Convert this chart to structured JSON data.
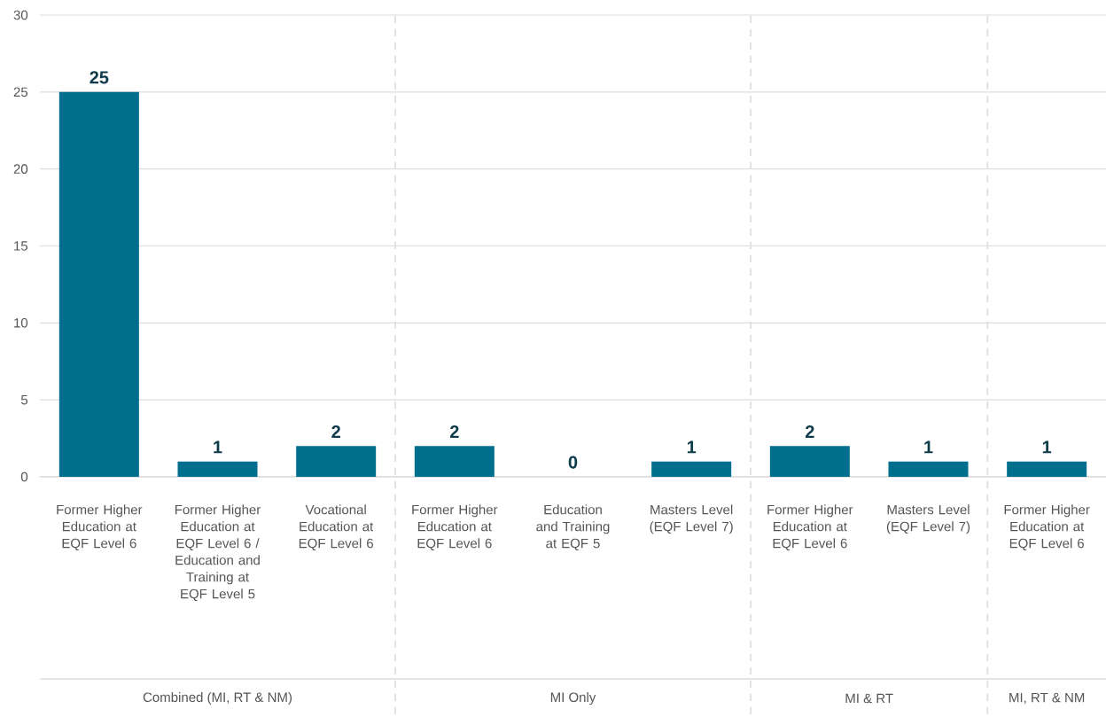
{
  "chart_data": {
    "type": "bar",
    "categories": [
      "Former Higher Education at EQF Level 6",
      "Former Higher Education at EQF Level 6 / Education and Training at EQF Level 5",
      "Vocational Education at EQF Level 6",
      "Former Higher Education at EQF Level 6",
      "Education and Training at EQF 5",
      "Masters Level (EQF Level 7)",
      "Former Higher Education at EQF Level 6",
      "Masters Level (EQF Level 7)",
      "Former Higher Education at EQF Level 6"
    ],
    "values": [
      25,
      1,
      2,
      2,
      0,
      1,
      2,
      1,
      1
    ],
    "color": "#006f8e",
    "ylim": [
      0,
      30
    ],
    "yticks": [
      0,
      5,
      10,
      15,
      20,
      25,
      30
    ],
    "grid": "y",
    "data_labels": true,
    "annotations": [
      "Combined (MI, RT & NM)",
      "MI Only",
      "MI & RT",
      "MI, RT & NM"
    ]
  }
}
